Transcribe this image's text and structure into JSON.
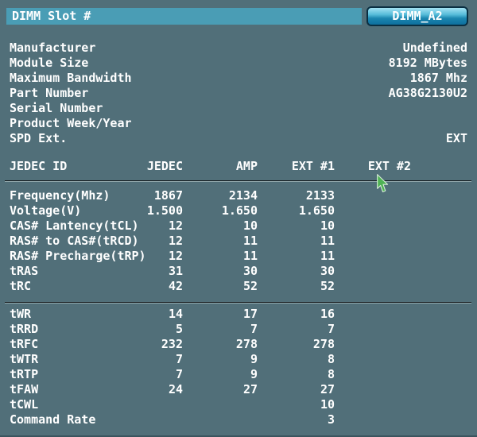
{
  "header": {
    "title_bar": "DIMM Slot #",
    "slot_button": "DIMM_A2"
  },
  "info": {
    "rows": [
      {
        "label": "Manufacturer",
        "value": "Undefined"
      },
      {
        "label": "Module Size",
        "value": "8192 MBytes"
      },
      {
        "label": "Maximum Bandwidth",
        "value": "1867 Mhz"
      },
      {
        "label": "Part Number",
        "value": "AG38G2130U2"
      },
      {
        "label": "Serial Number",
        "value": ""
      },
      {
        "label": "Product Week/Year",
        "value": ""
      },
      {
        "label": "SPD Ext.",
        "value": "EXT"
      }
    ]
  },
  "table": {
    "header": {
      "label": "JEDEC ID",
      "columns": [
        "JEDEC",
        "AMP",
        "EXT #1",
        "EXT #2"
      ]
    },
    "section1": [
      {
        "label": "Frequency(Mhz)",
        "values": [
          "1867",
          "2134",
          "2133",
          ""
        ]
      },
      {
        "label": "Voltage(V)",
        "values": [
          "1.500",
          "1.650",
          "1.650",
          ""
        ]
      },
      {
        "label": "CAS# Lantency(tCL)",
        "values": [
          "12",
          "10",
          "10",
          ""
        ]
      },
      {
        "label": "RAS# to CAS#(tRCD)",
        "values": [
          "12",
          "11",
          "11",
          ""
        ]
      },
      {
        "label": "RAS# Precharge(tRP)",
        "values": [
          "12",
          "11",
          "11",
          ""
        ]
      },
      {
        "label": "tRAS",
        "values": [
          "31",
          "30",
          "30",
          ""
        ]
      },
      {
        "label": "tRC",
        "values": [
          "42",
          "52",
          "52",
          ""
        ]
      }
    ],
    "section2": [
      {
        "label": "tWR",
        "values": [
          "14",
          "17",
          "16",
          ""
        ]
      },
      {
        "label": "tRRD",
        "values": [
          "5",
          "7",
          "7",
          ""
        ]
      },
      {
        "label": "tRFC",
        "values": [
          "232",
          "278",
          "278",
          ""
        ]
      },
      {
        "label": "tWTR",
        "values": [
          "7",
          "9",
          "8",
          ""
        ]
      },
      {
        "label": "tRTP",
        "values": [
          "7",
          "9",
          "8",
          ""
        ]
      },
      {
        "label": "tFAW",
        "values": [
          "24",
          "27",
          "27",
          ""
        ]
      },
      {
        "label": "tCWL",
        "values": [
          "",
          "",
          "10",
          ""
        ]
      },
      {
        "label": "Command Rate",
        "values": [
          "",
          "",
          "3",
          ""
        ]
      }
    ]
  },
  "cursor": {
    "icon": "green-arrow-cursor"
  },
  "colors": {
    "background": "#516f79",
    "title_bar": "#4a9db5",
    "button_gradient_top": "#a4e2f2",
    "button_gradient_bottom": "#0e6f9d",
    "button_border": "#0a2f42",
    "text": "#ffffff",
    "separator_dark": "#101417",
    "cursor_green": "#4fb254"
  }
}
